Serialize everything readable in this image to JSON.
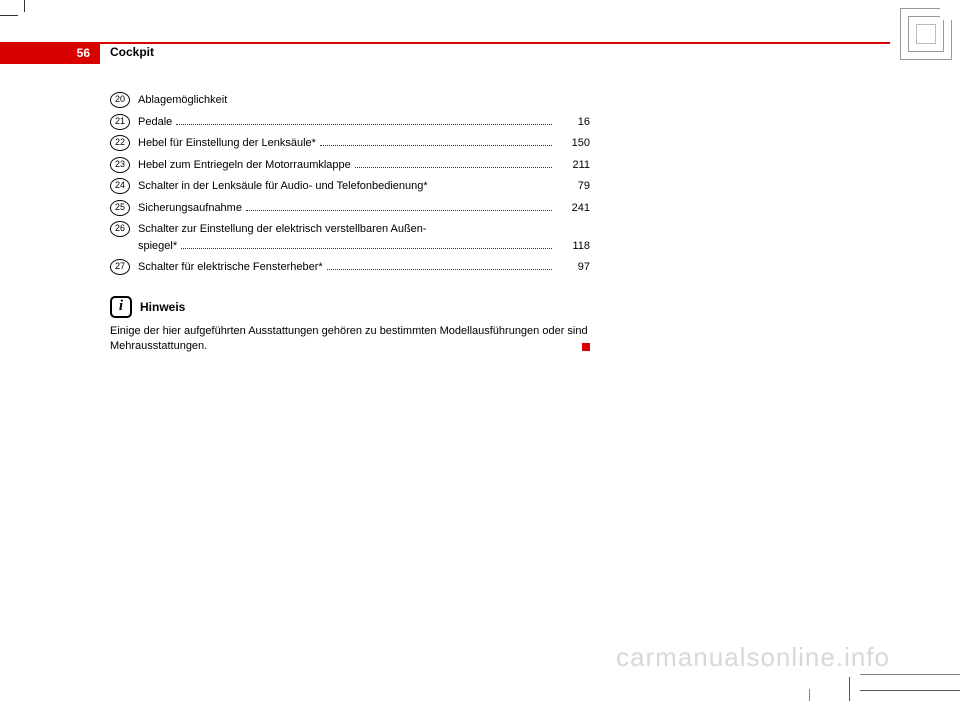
{
  "colors": {
    "accent": "#d90000",
    "text": "#000000",
    "watermark": "#d8d8d8",
    "crop_mark": "#555555"
  },
  "page_number": "56",
  "section_title": "Cockpit",
  "items": [
    {
      "num": "20",
      "label": "Ablagemöglichkeit",
      "page": "",
      "dots": false
    },
    {
      "num": "21",
      "label": "Pedale",
      "page": "16",
      "dots": true
    },
    {
      "num": "22",
      "label": "Hebel für Einstellung der Lenksäule*",
      "page": "150",
      "dots": true
    },
    {
      "num": "23",
      "label": "Hebel zum Entriegeln der Motorraumklappe",
      "page": "211",
      "dots": true
    },
    {
      "num": "24",
      "label": "Schalter in der Lenksäule für Audio- und Telefonbedienung*",
      "page": "79",
      "dots": false
    },
    {
      "num": "25",
      "label": "Sicherungsaufnahme",
      "page": "241",
      "dots": true
    },
    {
      "num": "26",
      "label_line1": "Schalter zur Einstellung der elektrisch verstellbaren Außen-",
      "label_line2": "spiegel*",
      "page": "118",
      "dots": true,
      "multiline": true
    },
    {
      "num": "27",
      "label": "Schalter für elektrische Fensterheber*",
      "page": "97",
      "dots": true
    }
  ],
  "hinweis": {
    "icon_letter": "i",
    "title": "Hinweis",
    "text": "Einige der hier aufgeführten Ausstattungen gehören zu bestimmten Modell­ausführungen oder sind Mehrausstattungen."
  },
  "watermark": "carmanualsonline.info"
}
